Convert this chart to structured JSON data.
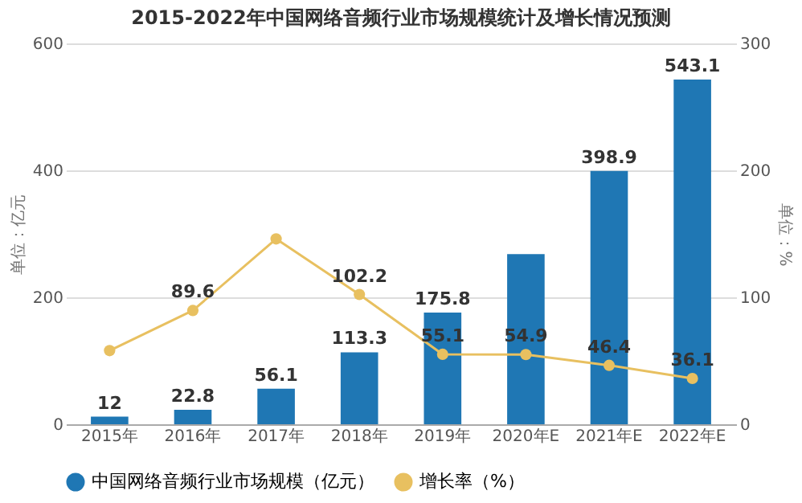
{
  "chart_data": {
    "type": "bar",
    "title": "2015-2022年中国网络音频行业市场规模统计及增长情况预测",
    "ylabel": "单位：亿元",
    "y2label": "单位：%",
    "categories": [
      "2015年",
      "2016年",
      "2017年",
      "2018年",
      "2019年",
      "2020年E",
      "2021年E",
      "2022年E"
    ],
    "series": [
      {
        "name": "中国网络音频行业市场规模（亿元）",
        "color": "#1f77b4",
        "values": [
          12,
          22.8,
          56.1,
          113.3,
          175.8,
          268,
          398.9,
          543.1
        ],
        "value_labels": [
          "12",
          "22.8",
          "56.1",
          "113.3",
          "175.8",
          null,
          "398.9",
          "543.1"
        ]
      },
      {
        "name": "增长率（%）",
        "type": "line",
        "axis": "y2",
        "color": "#e8c060",
        "marker": "circle",
        "values": [
          58,
          89.6,
          146,
          102.2,
          55.1,
          54.9,
          46.4,
          36.1
        ],
        "value_labels": [
          null,
          "89.6",
          null,
          "102.2",
          "55.1",
          "54.9",
          "46.4",
          "36.1"
        ]
      }
    ],
    "ylim": [
      0,
      600
    ],
    "yticks": [
      0,
      200,
      400,
      600
    ],
    "y2lim": [
      0,
      300
    ],
    "y2ticks": [
      0,
      100,
      200,
      300
    ],
    "grid": "y",
    "legend": "bottom"
  }
}
